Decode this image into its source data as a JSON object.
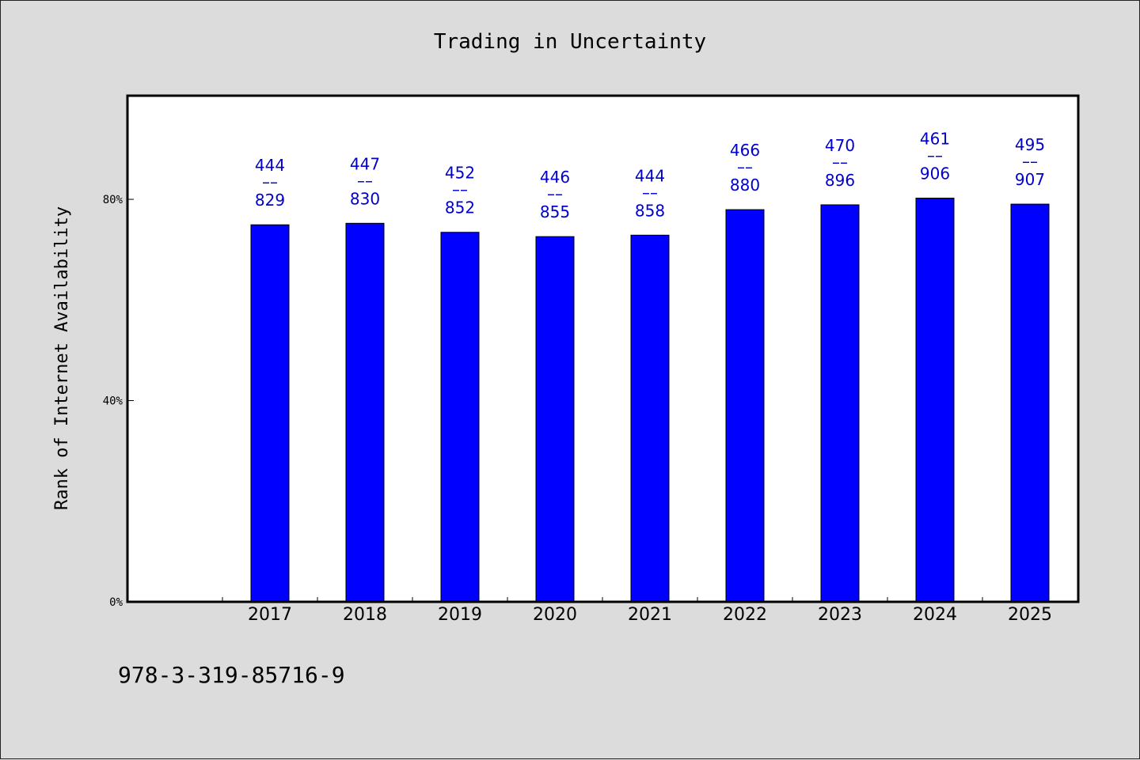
{
  "chart_data": {
    "type": "bar",
    "title": "Trading in Uncertainty",
    "xlabel": "",
    "ylabel": "Rank of Internet Availability",
    "categories": [
      "2017",
      "2018",
      "2019",
      "2020",
      "2021",
      "2022",
      "2023",
      "2024",
      "2025"
    ],
    "values": [
      0.7494,
      0.7524,
      0.7345,
      0.7259,
      0.7288,
      0.7795,
      0.7891,
      0.8024,
      0.7905
    ],
    "data_labels": [
      {
        "top": "444",
        "mid": "––",
        "bottom": "829"
      },
      {
        "top": "447",
        "mid": "––",
        "bottom": "830"
      },
      {
        "top": "452",
        "mid": "––",
        "bottom": "852"
      },
      {
        "top": "446",
        "mid": "––",
        "bottom": "855"
      },
      {
        "top": "444",
        "mid": "––",
        "bottom": "858"
      },
      {
        "top": "466",
        "mid": "––",
        "bottom": "880"
      },
      {
        "top": "470",
        "mid": "––",
        "bottom": "896"
      },
      {
        "top": "461",
        "mid": "––",
        "bottom": "906"
      },
      {
        "top": "495",
        "mid": "––",
        "bottom": "907"
      }
    ],
    "yticks": [
      {
        "value": 0,
        "label": "0%"
      },
      {
        "value": 0.4,
        "label": "40%"
      },
      {
        "value": 0.8,
        "label": "80%"
      }
    ],
    "ylim": [
      0,
      1.006
    ],
    "grid": false,
    "bar_color": "#0000ff",
    "label_color": "#0000cc"
  },
  "footer": {
    "isbn": "978-3-319-85716-9"
  }
}
